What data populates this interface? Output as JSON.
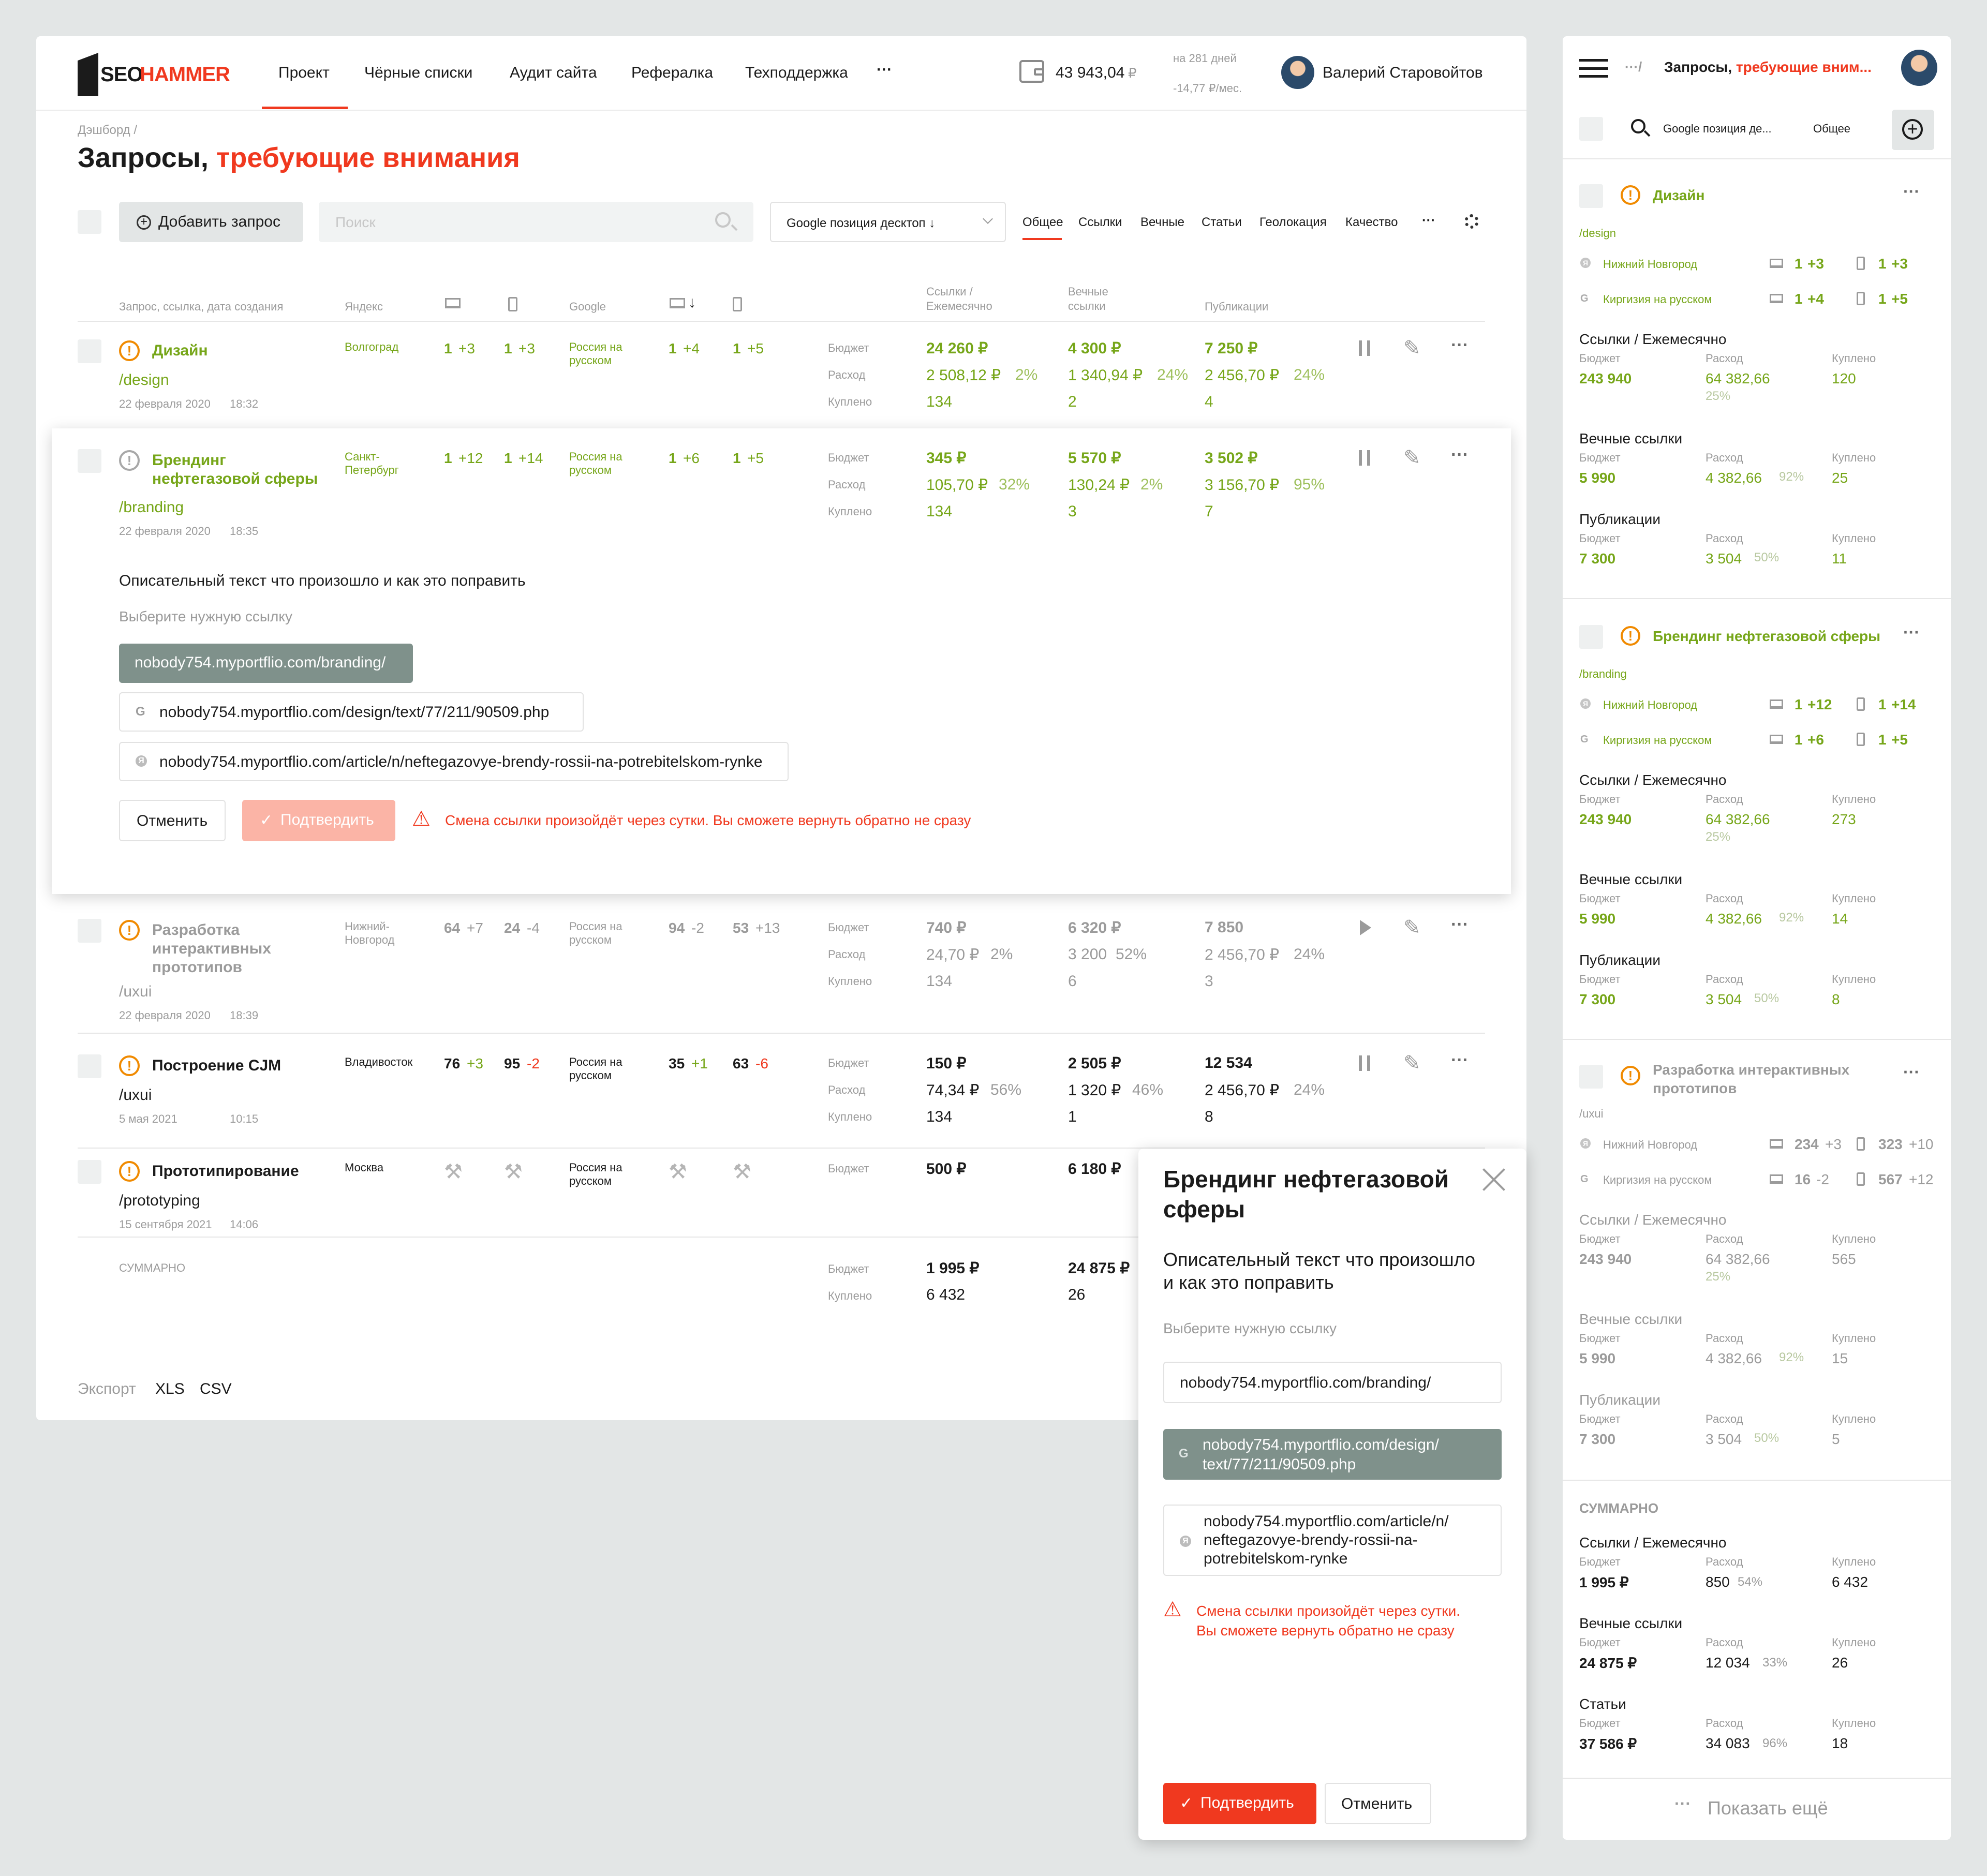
{
  "app": {
    "logo_seo": "SEO",
    "logo_hammer": "HAMMER"
  },
  "nav": {
    "items": [
      "Проект",
      "Чёрные списки",
      "Аудит сайта",
      "Рефералка",
      "Техподдержка"
    ],
    "more": "···"
  },
  "header": {
    "balance": "43 943,04",
    "currency": "₽",
    "days": "на 281 дней",
    "per_month": "-14,77 ₽/мес.",
    "user_name": "Валерий Старовойтов"
  },
  "breadcrumb": "Дэшборд /",
  "page": {
    "title_black": "Запросы, ",
    "title_red": "требующие внимания"
  },
  "toolbar": {
    "add_label": "Добавить запрос",
    "search_placeholder": "Поиск",
    "select_value": "Google позиция десктоп ↓",
    "tabs": [
      "Общее",
      "Ссылки",
      "Вечные",
      "Статьи",
      "Геолокация",
      "Качество"
    ],
    "more": "···"
  },
  "table": {
    "headers": {
      "query": "Запрос, ссылка, дата создания",
      "yandex": "Яндекс",
      "google": "Google",
      "links": "Ссылки / Ежемесячно",
      "eternal": "Вечные ссылки",
      "pubs": "Публикации"
    },
    "metric_labels": {
      "budget": "Бюджет",
      "spend": "Расход",
      "bought": "Куплено"
    },
    "rows": [
      {
        "title": "Дизайн",
        "path": "/design",
        "date": "22 февраля 2020",
        "time": "18:32",
        "yregion": "Волгоград",
        "y1": "1",
        "y1d": "+3",
        "y2": "1",
        "y2d": "+3",
        "gregion": "Россия на русском",
        "g1": "1",
        "g1d": "+4",
        "g2": "1",
        "g2d": "+5",
        "lb": "24 260 ₽",
        "ls": "2 508,12 ₽",
        "lp": "2%",
        "lq": "134",
        "eb": "4 300 ₽",
        "es": "1 340,94 ₽",
        "ep": "24%",
        "eq": "2",
        "pb": "7 250 ₽",
        "ps": "2 456,70 ₽",
        "pp": "24%",
        "pq": "4"
      },
      {
        "title": "Брендинг нефтегазовой сферы",
        "path": "/branding",
        "date": "22 февраля 2020",
        "time": "18:35",
        "yregion": "Санкт-Петербург",
        "y1": "1",
        "y1d": "+12",
        "y2": "1",
        "y2d": "+14",
        "gregion": "Россия на русском",
        "g1": "1",
        "g1d": "+6",
        "g2": "1",
        "g2d": "+5",
        "lb": "345 ₽",
        "ls": "105,70 ₽",
        "lp": "32%",
        "lq": "134",
        "eb": "5 570 ₽",
        "es": "130,24 ₽",
        "ep": "2%",
        "eq": "3",
        "pb": "3 502 ₽",
        "ps": "3 156,70 ₽",
        "pp": "95%",
        "pq": "7"
      },
      {
        "title": "Разработка интерактивных прототипов",
        "path": "/uxui",
        "date": "22 февраля 2020",
        "time": "18:39",
        "yregion": "Нижний-Новгород",
        "y1": "64",
        "y1d": "+7",
        "y2": "24",
        "y2d": "-4",
        "gregion": "Россия на русском",
        "g1": "94",
        "g1d": "-2",
        "g2": "53",
        "g2d": "+13",
        "lb": "740 ₽",
        "ls": "24,70 ₽",
        "lp": "2%",
        "lq": "134",
        "eb": "6 320 ₽",
        "es": "3 200",
        "ep": "52%",
        "eq": "6",
        "pb": "7 850",
        "ps": "2 456,70 ₽",
        "pp": "24%",
        "pq": "3"
      },
      {
        "title": "Построение CJM",
        "path": "/uxui",
        "date": "5 мая 2021",
        "time": "10:15",
        "yregion": "Владивосток",
        "y1": "76",
        "y1d": "+3",
        "y2": "95",
        "y2d": "-2",
        "gregion": "Россия на русском",
        "g1": "35",
        "g1d": "+1",
        "g2": "63",
        "g2d": "-6",
        "lb": "150 ₽",
        "ls": "74,34 ₽",
        "lp": "56%",
        "lq": "134",
        "eb": "2 505 ₽",
        "es": "1 320 ₽",
        "ep": "46%",
        "eq": "1",
        "pb": "12 534",
        "ps": "2 456,70 ₽",
        "pp": "24%",
        "pq": "8"
      },
      {
        "title": "Прототипирование",
        "path": "/prototyping",
        "date": "15 сентября 2021",
        "time": "14:06",
        "yregion": "Москва",
        "gregion": "Россия на русском",
        "lb": "500 ₽",
        "eb": "6 180 ₽"
      }
    ],
    "summary": {
      "label": "СУММАРНО",
      "budget_l": "1 995 ₽",
      "bought_l": "6 432",
      "budget_e": "24 875 ₽",
      "bought_e": "26"
    }
  },
  "expand": {
    "desc": "Описательный текст что произошло и как это поправить",
    "choose": "Выберите нужную ссылку",
    "link1": "nobody754.myportflio.com/branding/",
    "link2": "nobody754.myportflio.com/design/text/77/211/90509.php",
    "link3": "nobody754.myportflio.com/article/n/neftegazovye-brendy-rossii-na-potrebitelskom-rynke",
    "cancel": "Отменить",
    "confirm": "Подтвердить",
    "warning": "Смена ссылки произойдёт через сутки. Вы сможете вернуть обратно не сразу"
  },
  "export": {
    "label": "Экспорт",
    "xls": "XLS",
    "csv": "CSV"
  },
  "modal": {
    "title_l1": "Брендинг нефтегазовой",
    "title_l2": "сферы",
    "desc_l1": "Описательный текст что произошло",
    "desc_l2": "и как это поправить",
    "choose": "Выберите нужную ссылку",
    "link1": "nobody754.myportflio.com/branding/",
    "link2_l1": "nobody754.myportflio.com/design/",
    "link2_l2": "text/77/211/90509.php",
    "link3_l1": "nobody754.myportflio.com/article/n/",
    "link3_l2": "neftegazovye-brendy-rossii-na-",
    "link3_l3": "potrebitelskom-rynke",
    "warn_l1": "Смена ссылки произойдёт через сутки.",
    "warn_l2": "Вы сможете вернуть обратно не сразу",
    "confirm": "Подтвердить",
    "cancel": "Отменить"
  },
  "mobile": {
    "crumb": "···/",
    "title_black": "Запросы, ",
    "title_red": "требующие вним...",
    "search_value": "Google позиция де...",
    "tab": "Общее",
    "sec_links": "Ссылки / Ежемесячно",
    "sec_eternal": "Вечные ссылки",
    "sec_pubs": "Публикации",
    "sec_articles": "Статьи",
    "l_budget": "Бюджет",
    "l_spend": "Расход",
    "l_bought": "Куплено",
    "cards": [
      {
        "title": "Дизайн",
        "path": "/design",
        "r1": "Нижний Новгород",
        "r1a": "1",
        "r1ad": "+3",
        "r1b": "1",
        "r1bd": "+3",
        "r2": "Киргизия на русском",
        "r2a": "1",
        "r2ad": "+4",
        "r2b": "1",
        "r2bd": "+5",
        "lb": "243 940",
        "ls": "64 382,66",
        "lp": "25%",
        "lq": "120",
        "eb": "5 990",
        "es": "4 382,66",
        "ep": "92%",
        "eq": "25",
        "pb": "7 300",
        "ps": "3 504",
        "pp": "50%",
        "pq": "11"
      },
      {
        "title": "Брендинг нефтегазовой сферы",
        "path": "/branding",
        "r1": "Нижний Новгород",
        "r1a": "1",
        "r1ad": "+12",
        "r1b": "1",
        "r1bd": "+14",
        "r2": "Киргизия на русском",
        "r2a": "1",
        "r2ad": "+6",
        "r2b": "1",
        "r2bd": "+5",
        "lb": "243 940",
        "ls": "64 382,66",
        "lp": "25%",
        "lq": "273",
        "eb": "5 990",
        "es": "4 382,66",
        "ep": "92%",
        "eq": "14",
        "pb": "7 300",
        "ps": "3 504",
        "pp": "50%",
        "pq": "8"
      },
      {
        "title_l1": "Разработка интерактивных",
        "title_l2": "прототипов",
        "path": "/uxui",
        "r1": "Нижний Новгород",
        "r1a": "234",
        "r1ad": "+3",
        "r1b": "323",
        "r1bd": "+10",
        "r2": "Киргизия на русском",
        "r2a": "16",
        "r2ad": "-2",
        "r2b": "567",
        "r2bd": "+12",
        "lb": "243 940",
        "ls": "64 382,66",
        "lp": "25%",
        "lq": "565",
        "eb": "5 990",
        "es": "4 382,66",
        "ep": "92%",
        "eq": "15",
        "pb": "7 300",
        "ps": "3 504",
        "pp": "50%",
        "pq": "5"
      }
    ],
    "summary": {
      "label": "СУММАРНО",
      "lb": "1 995 ₽",
      "ls": "850",
      "lp": "54%",
      "lq": "6 432",
      "eb": "24 875 ₽",
      "es": "12 034",
      "ep": "33%",
      "eq": "26",
      "ab": "37 586 ₽",
      "as": "34 083",
      "ap": "96%",
      "aq": "18"
    },
    "show_more": "Показать ещё"
  }
}
